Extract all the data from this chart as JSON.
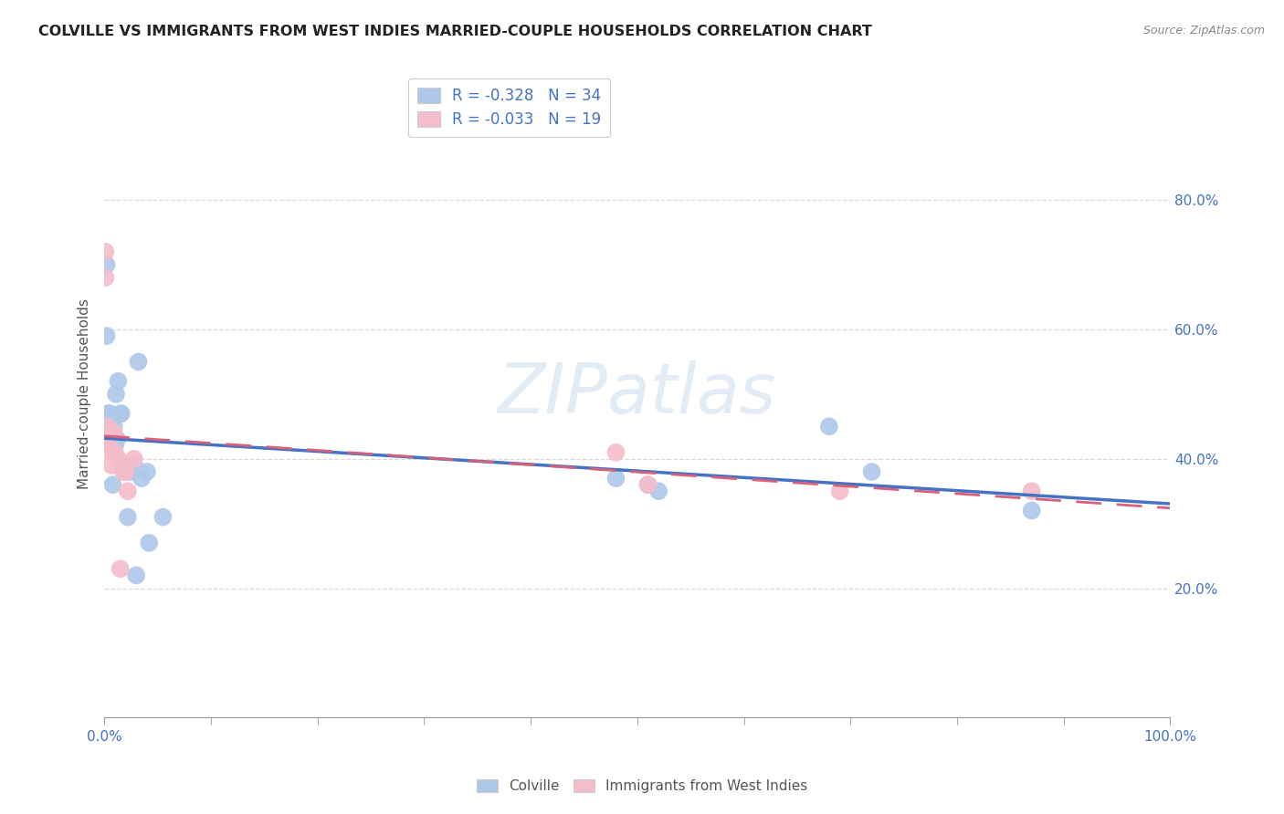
{
  "title": "COLVILLE VS IMMIGRANTS FROM WEST INDIES MARRIED-COUPLE HOUSEHOLDS CORRELATION CHART",
  "source": "Source: ZipAtlas.com",
  "ylabel": "Married-couple Households",
  "xlim": [
    0,
    1.0
  ],
  "ylim": [
    0,
    1.0
  ],
  "yticks": [
    0.0,
    0.2,
    0.4,
    0.6,
    0.8
  ],
  "yticklabels": [
    "",
    "20.0%",
    "40.0%",
    "60.0%",
    "80.0%"
  ],
  "colville_R": -0.328,
  "colville_N": 34,
  "westindies_R": -0.033,
  "westindies_N": 19,
  "colville_color": "#adc8e8",
  "westindies_color": "#f5bccb",
  "colville_line_color": "#4472c4",
  "westindies_line_color": "#d9607a",
  "colville_x": [
    0.002,
    0.002,
    0.003,
    0.004,
    0.005,
    0.005,
    0.006,
    0.007,
    0.007,
    0.008,
    0.009,
    0.01,
    0.011,
    0.012,
    0.013,
    0.015,
    0.016,
    0.018,
    0.02,
    0.022,
    0.025,
    0.028,
    0.03,
    0.032,
    0.035,
    0.04,
    0.042,
    0.055,
    0.48,
    0.51,
    0.52,
    0.68,
    0.72,
    0.87
  ],
  "colville_y": [
    0.7,
    0.59,
    0.47,
    0.46,
    0.44,
    0.47,
    0.46,
    0.44,
    0.42,
    0.36,
    0.45,
    0.42,
    0.5,
    0.43,
    0.52,
    0.47,
    0.47,
    0.39,
    0.38,
    0.31,
    0.38,
    0.39,
    0.22,
    0.55,
    0.37,
    0.38,
    0.27,
    0.31,
    0.37,
    0.36,
    0.35,
    0.45,
    0.38,
    0.32
  ],
  "westindies_x": [
    0.001,
    0.001,
    0.003,
    0.004,
    0.005,
    0.006,
    0.007,
    0.009,
    0.01,
    0.013,
    0.015,
    0.018,
    0.02,
    0.022,
    0.028,
    0.48,
    0.51,
    0.69,
    0.87
  ],
  "westindies_y": [
    0.72,
    0.68,
    0.45,
    0.42,
    0.44,
    0.41,
    0.39,
    0.44,
    0.41,
    0.4,
    0.23,
    0.38,
    0.38,
    0.35,
    0.4,
    0.41,
    0.36,
    0.35,
    0.35
  ],
  "background_color": "#ffffff",
  "grid_color": "#d0d0d0",
  "title_color": "#222222",
  "axis_tick_color": "#4472c4",
  "legend_labels": [
    "Colville",
    "Immigrants from West Indies"
  ]
}
